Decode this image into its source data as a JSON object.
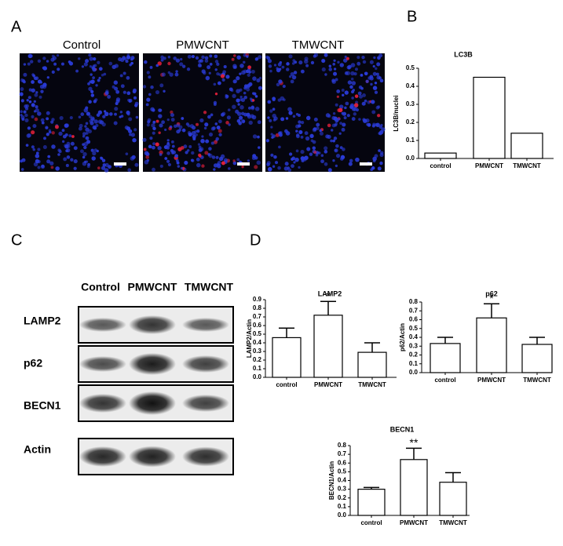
{
  "figure": {
    "panel_labels": [
      "A",
      "B",
      "C",
      "D"
    ],
    "micrograph_labels": [
      "Control",
      "PMWCNT",
      "TMWCNT"
    ],
    "blot_lanes": [
      "Control",
      "PMWCNT",
      "TMWCNT"
    ],
    "blot_rows": [
      "LAMP2",
      "p62",
      "BECN1",
      "Actin"
    ]
  },
  "chart_data": [
    {
      "type": "bar",
      "title": "LC3B",
      "y_label": "LC3B/nuclei",
      "color": "#ffffff",
      "categories": [
        "control",
        "PMWCNT",
        "TMWCNT"
      ],
      "values": [
        0.03,
        0.45,
        0.14
      ],
      "ylim": [
        0,
        0.5
      ],
      "yticks": [
        {
          "value": 0,
          "label": "0.0"
        },
        0.1,
        0.2,
        0.3,
        0.4,
        0.5
      ]
    },
    {
      "type": "bar",
      "title": "LAMP2",
      "y_label": "LAMP2/Actin",
      "color": "#ffffff",
      "categories": [
        "control",
        "PMWCNT",
        "TMWCNT"
      ],
      "values": [
        0.46,
        0.72,
        0.29
      ],
      "errors": [
        0.11,
        0.16,
        0.11
      ],
      "annotation": {
        "category": "PMWCNT",
        "text": "*"
      },
      "ylim": [
        0,
        0.9
      ],
      "yticks": [
        {
          "value": 0,
          "label": "0.0"
        },
        0.1,
        0.2,
        0.3,
        0.4,
        0.5,
        0.6,
        0.7,
        0.8,
        0.9
      ]
    },
    {
      "type": "bar",
      "title": "p62",
      "y_label": "p62/Actin",
      "color": "#ffffff",
      "categories": [
        "control",
        "PMWCNT",
        "TMWCNT"
      ],
      "values": [
        0.33,
        0.62,
        0.32
      ],
      "errors": [
        0.07,
        0.16,
        0.08
      ],
      "annotation": {
        "category": "PMWCNT",
        "text": "*"
      },
      "ylim": [
        0,
        0.8
      ],
      "yticks": [
        {
          "value": 0,
          "label": "0.0"
        },
        0.1,
        0.2,
        0.3,
        0.4,
        0.5,
        0.6,
        0.7,
        0.8
      ]
    },
    {
      "type": "bar",
      "title": "BECN1",
      "y_label": "BECN1/Actin",
      "color": "#ffffff",
      "categories": [
        "control",
        "PMWCNT",
        "TMWCNT"
      ],
      "values": [
        0.3,
        0.64,
        0.38
      ],
      "errors": [
        0.02,
        0.13,
        0.11
      ],
      "annotation": {
        "category": "PMWCNT",
        "text": "**"
      },
      "ylim": [
        0,
        0.8
      ],
      "yticks": [
        {
          "value": 0,
          "label": "0.0"
        },
        0.1,
        0.2,
        0.3,
        0.4,
        0.5,
        0.6,
        0.7,
        0.8
      ]
    }
  ]
}
